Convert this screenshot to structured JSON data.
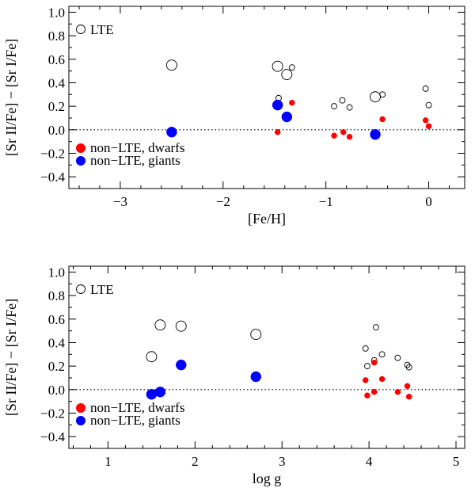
{
  "chart_data": [
    {
      "type": "scatter",
      "xlabel": "[Fe/H]",
      "ylabel": "[Sr II/Fe] − [Sr I/Fe]",
      "xlim": [
        -3.5,
        0.35
      ],
      "ylim": [
        -0.5,
        1.05
      ],
      "xticks": [
        -3,
        -2,
        -1,
        0
      ],
      "xtick_labels": [
        "−3",
        "−2",
        "−1",
        "0"
      ],
      "yticks": [
        -0.4,
        -0.2,
        0.0,
        0.2,
        0.4,
        0.6,
        0.8,
        1.0
      ],
      "ytick_labels": [
        "−0.4",
        "−0.2",
        "0.0",
        "0.2",
        "0.4",
        "0.6",
        "0.8",
        "1.0"
      ],
      "reference_line_y": 0,
      "legend_top": "LTE",
      "legend_bottom": [
        "non−LTE, dwarfs",
        "non−LTE, giants"
      ],
      "series": [
        {
          "name": "LTE",
          "marker": "open-circle",
          "color": "#000000",
          "points": [
            [
              -2.5,
              0.55,
              "L"
            ],
            [
              -1.47,
              0.54,
              "L"
            ],
            [
              -1.38,
              0.47,
              "L"
            ],
            [
              -1.33,
              0.53,
              "S"
            ],
            [
              -1.46,
              0.27,
              "S"
            ],
            [
              -0.52,
              0.28,
              "L"
            ],
            [
              -0.45,
              0.3,
              "S"
            ],
            [
              -0.92,
              0.2,
              "S"
            ],
            [
              -0.84,
              0.25,
              "S"
            ],
            [
              -0.77,
              0.19,
              "S"
            ],
            [
              -0.03,
              0.35,
              "S"
            ],
            [
              0.0,
              0.21,
              "S"
            ]
          ]
        },
        {
          "name": "non−LTE, dwarfs",
          "marker": "filled-circle",
          "color": "#ff0000",
          "points": [
            [
              -1.47,
              -0.02,
              "S"
            ],
            [
              -1.33,
              0.23,
              "S"
            ],
            [
              -0.92,
              -0.05,
              "S"
            ],
            [
              -0.83,
              -0.02,
              "S"
            ],
            [
              -0.77,
              -0.06,
              "S"
            ],
            [
              -0.45,
              0.09,
              "S"
            ],
            [
              -0.03,
              0.08,
              "S"
            ],
            [
              0.0,
              0.03,
              "S"
            ]
          ]
        },
        {
          "name": "non−LTE, giants",
          "marker": "filled-circle",
          "color": "#0000ff",
          "points": [
            [
              -2.5,
              -0.02,
              "L"
            ],
            [
              -1.47,
              0.21,
              "L"
            ],
            [
              -1.38,
              0.11,
              "L"
            ],
            [
              -0.52,
              -0.04,
              "L"
            ]
          ]
        }
      ]
    },
    {
      "type": "scatter",
      "xlabel": "log g",
      "ylabel": "[Sr II/Fe] − [Sr I/Fe]",
      "xlim": [
        0.55,
        5.1
      ],
      "ylim": [
        -0.5,
        1.05
      ],
      "xticks": [
        1,
        2,
        3,
        4,
        5
      ],
      "xtick_labels": [
        "1",
        "2",
        "3",
        "4",
        "5"
      ],
      "yticks": [
        -0.4,
        -0.2,
        0.0,
        0.2,
        0.4,
        0.6,
        0.8,
        1.0
      ],
      "ytick_labels": [
        "−0.4",
        "−0.2",
        "0.0",
        "0.2",
        "0.4",
        "0.6",
        "0.8",
        "1.0"
      ],
      "reference_line_y": 0,
      "legend_top": "LTE",
      "legend_bottom": [
        "non−LTE, dwarfs",
        "non−LTE, giants"
      ],
      "series": [
        {
          "name": "LTE",
          "marker": "open-circle",
          "color": "#000000",
          "points": [
            [
              1.5,
              0.28,
              "L"
            ],
            [
              1.6,
              0.55,
              "L"
            ],
            [
              1.84,
              0.54,
              "L"
            ],
            [
              2.7,
              0.47,
              "L"
            ],
            [
              3.96,
              0.35,
              "S"
            ],
            [
              3.98,
              0.2,
              "S"
            ],
            [
              4.06,
              0.25,
              "S"
            ],
            [
              4.08,
              0.53,
              "S"
            ],
            [
              4.15,
              0.3,
              "S"
            ],
            [
              4.33,
              0.27,
              "S"
            ],
            [
              4.44,
              0.21,
              "S"
            ],
            [
              4.46,
              0.19,
              "S"
            ]
          ]
        },
        {
          "name": "non−LTE, dwarfs",
          "marker": "filled-circle",
          "color": "#ff0000",
          "points": [
            [
              3.96,
              0.08,
              "S"
            ],
            [
              3.98,
              -0.05,
              "S"
            ],
            [
              4.06,
              0.23,
              "S"
            ],
            [
              4.06,
              -0.02,
              "S"
            ],
            [
              4.15,
              0.09,
              "S"
            ],
            [
              4.33,
              -0.02,
              "S"
            ],
            [
              4.44,
              0.03,
              "S"
            ],
            [
              4.46,
              -0.06,
              "S"
            ]
          ]
        },
        {
          "name": "non−LTE, giants",
          "marker": "filled-circle",
          "color": "#0000ff",
          "points": [
            [
              1.5,
              -0.04,
              "L"
            ],
            [
              1.6,
              -0.02,
              "L"
            ],
            [
              1.84,
              0.21,
              "L"
            ],
            [
              2.7,
              0.11,
              "L"
            ]
          ]
        }
      ]
    }
  ]
}
